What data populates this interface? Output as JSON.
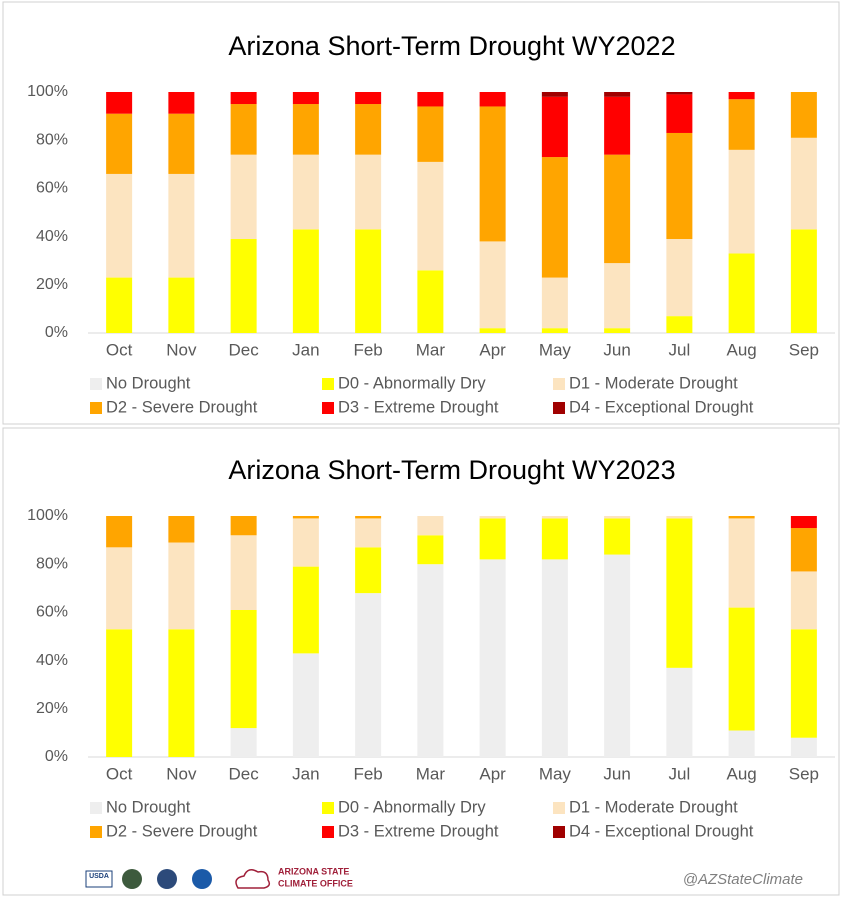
{
  "chart_data": [
    {
      "type": "bar",
      "stacked": true,
      "title": "Arizona Short-Term Drought WY2022",
      "categories": [
        "Oct",
        "Nov",
        "Dec",
        "Jan",
        "Feb",
        "Mar",
        "Apr",
        "May",
        "Jun",
        "Jul",
        "Aug",
        "Sep"
      ],
      "series": [
        {
          "name": "No Drought",
          "color": "#eeeeee",
          "values": [
            0,
            0,
            0,
            0,
            0,
            0,
            0,
            0,
            0,
            0,
            0,
            0
          ]
        },
        {
          "name": "D0 - Abnormally Dry",
          "color": "#ffff00",
          "values": [
            23,
            23,
            39,
            43,
            43,
            26,
            2,
            2,
            2,
            7,
            33,
            43
          ]
        },
        {
          "name": "D1 - Moderate Drought",
          "color": "#fce4c0",
          "values": [
            43,
            43,
            35,
            31,
            31,
            45,
            36,
            21,
            27,
            32,
            43,
            38
          ]
        },
        {
          "name": "D2 - Severe Drought",
          "color": "#ffa500",
          "values": [
            25,
            25,
            21,
            21,
            21,
            23,
            56,
            50,
            45,
            44,
            21,
            19
          ]
        },
        {
          "name": "D3 - Extreme Drought",
          "color": "#ff0000",
          "values": [
            9,
            9,
            5,
            5,
            5,
            6,
            6,
            25,
            24,
            16,
            3,
            0
          ]
        },
        {
          "name": "D4 - Exceptional Drought",
          "color": "#a00000",
          "values": [
            0,
            0,
            0,
            0,
            0,
            0,
            0,
            2,
            2,
            1,
            0,
            0
          ]
        }
      ],
      "ylim": [
        0,
        100
      ],
      "yticks": [
        {
          "value": 0,
          "label": "0%"
        },
        {
          "value": 20,
          "label": "20%"
        },
        {
          "value": 40,
          "label": "40%"
        },
        {
          "value": 60,
          "label": "60%"
        },
        {
          "value": 80,
          "label": "80%"
        },
        {
          "value": 100,
          "label": "100%"
        }
      ],
      "grid": false,
      "legend": "bottom"
    },
    {
      "type": "bar",
      "stacked": true,
      "title": "Arizona Short-Term Drought WY2023",
      "categories": [
        "Oct",
        "Nov",
        "Dec",
        "Jan",
        "Feb",
        "Mar",
        "Apr",
        "May",
        "Jun",
        "Jul",
        "Aug",
        "Sep"
      ],
      "series": [
        {
          "name": "No Drought",
          "color": "#eeeeee",
          "values": [
            0,
            0,
            12,
            43,
            68,
            80,
            82,
            82,
            84,
            37,
            11,
            8
          ]
        },
        {
          "name": "D0 - Abnormally Dry",
          "color": "#ffff00",
          "values": [
            53,
            53,
            49,
            36,
            19,
            12,
            17,
            17,
            15,
            62,
            51,
            45
          ]
        },
        {
          "name": "D1 - Moderate Drought",
          "color": "#fce4c0",
          "values": [
            34,
            36,
            31,
            20,
            12,
            8,
            1,
            1,
            1,
            1,
            37,
            24
          ]
        },
        {
          "name": "D2 - Severe Drought",
          "color": "#ffa500",
          "values": [
            13,
            11,
            8,
            1,
            1,
            0,
            0,
            0,
            0,
            0,
            1,
            18
          ]
        },
        {
          "name": "D3 - Extreme Drought",
          "color": "#ff0000",
          "values": [
            0,
            0,
            0,
            0,
            0,
            0,
            0,
            0,
            0,
            0,
            0,
            5
          ]
        },
        {
          "name": "D4 - Exceptional Drought",
          "color": "#a00000",
          "values": [
            0,
            0,
            0,
            0,
            0,
            0,
            0,
            0,
            0,
            0,
            0,
            0
          ]
        }
      ],
      "ylim": [
        0,
        100
      ],
      "yticks": [
        {
          "value": 0,
          "label": "0%"
        },
        {
          "value": 20,
          "label": "20%"
        },
        {
          "value": 40,
          "label": "40%"
        },
        {
          "value": 60,
          "label": "60%"
        },
        {
          "value": 80,
          "label": "80%"
        },
        {
          "value": 100,
          "label": "100%"
        }
      ],
      "grid": false,
      "legend": "bottom"
    }
  ],
  "footer": {
    "logo_text": "USDA",
    "office": [
      "ARIZONA STATE",
      "CLIMATE OFFICE"
    ],
    "handle": "@AZStateClimate"
  }
}
